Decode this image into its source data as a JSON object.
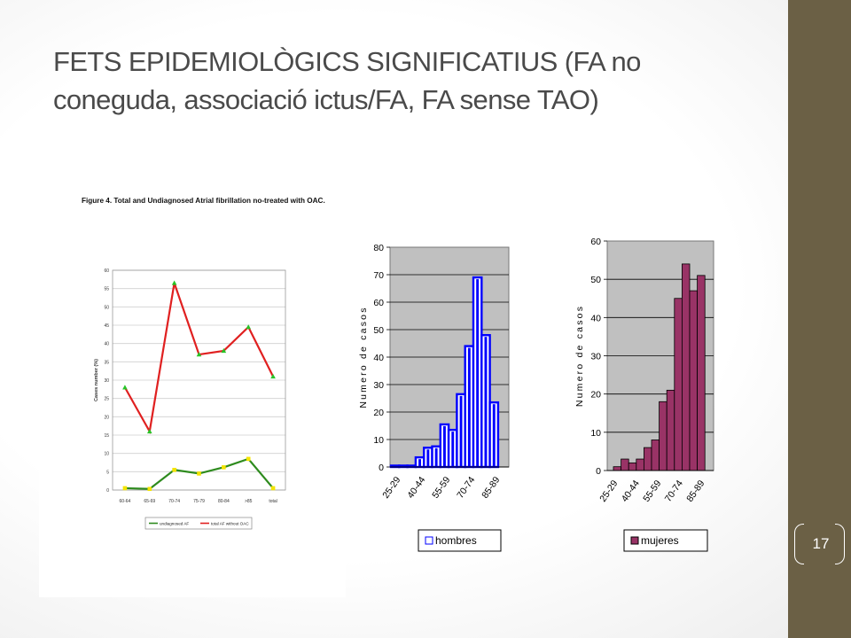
{
  "slide": {
    "title": "FETS EPIDEMIOLÒGICS SIGNIFICATIUS (FA no coneguda, associació ictus/FA, FA sense TAO)",
    "page_number": "17"
  },
  "colors": {
    "sidebar": "#6b6045",
    "red_series": "#e02020",
    "green_series": "#2e8b1e",
    "hombres": "#0000ff",
    "mujeres": "#993366",
    "plot_bg": "#c0c0c0"
  },
  "chart_data": [
    {
      "type": "line",
      "title": "Figure 4.  Total and Undiagnosed Atrial fibrillation no-treated with OAC.",
      "ylabel": "Cases number (%)",
      "xlabel": "",
      "categories": [
        "60-64",
        "65-69",
        "70-74",
        "75-79",
        "80-84",
        ">85",
        "total"
      ],
      "ylim": [
        0,
        60
      ],
      "yticks": [
        "0",
        "5",
        "10",
        "15",
        "20",
        "25",
        "30",
        "35",
        "40",
        "45",
        "50",
        "55",
        "60"
      ],
      "grid": true,
      "legend_position": "bottom",
      "series": [
        {
          "name": "undiagnosed AF",
          "values": [
            0.5,
            0.3,
            5.5,
            4.5,
            6.2,
            8.5,
            0.5
          ]
        },
        {
          "name": "total AF without OAC",
          "values": [
            28,
            16,
            56.5,
            37,
            38,
            44.5,
            31
          ]
        }
      ]
    },
    {
      "type": "bar",
      "ylabel": "Numero de casos",
      "ylim": [
        0,
        80
      ],
      "yticks": [
        "0",
        "10",
        "20",
        "30",
        "40",
        "50",
        "60",
        "70",
        "80"
      ],
      "xtick_labels": [
        "25-29",
        "40-44",
        "55-59",
        "70-74",
        "85-89"
      ],
      "legend_position": "bottom",
      "series": [
        {
          "name": "hombres",
          "values": [
            0.5,
            0.5,
            0.5,
            3.5,
            7,
            7.5,
            15.5,
            13.5,
            26.5,
            44,
            69,
            48,
            23.5
          ]
        }
      ]
    },
    {
      "type": "bar",
      "ylabel": "Numero de casos",
      "ylim": [
        0,
        60
      ],
      "yticks": [
        "0",
        "10",
        "20",
        "30",
        "40",
        "50",
        "60"
      ],
      "xtick_labels": [
        "25-29",
        "40-44",
        "55-59",
        "70-74",
        "85-89"
      ],
      "legend_position": "bottom",
      "series": [
        {
          "name": "mujeres",
          "values": [
            1,
            3,
            2,
            3,
            6,
            8,
            18,
            21,
            45,
            54,
            47,
            51
          ]
        }
      ]
    }
  ]
}
